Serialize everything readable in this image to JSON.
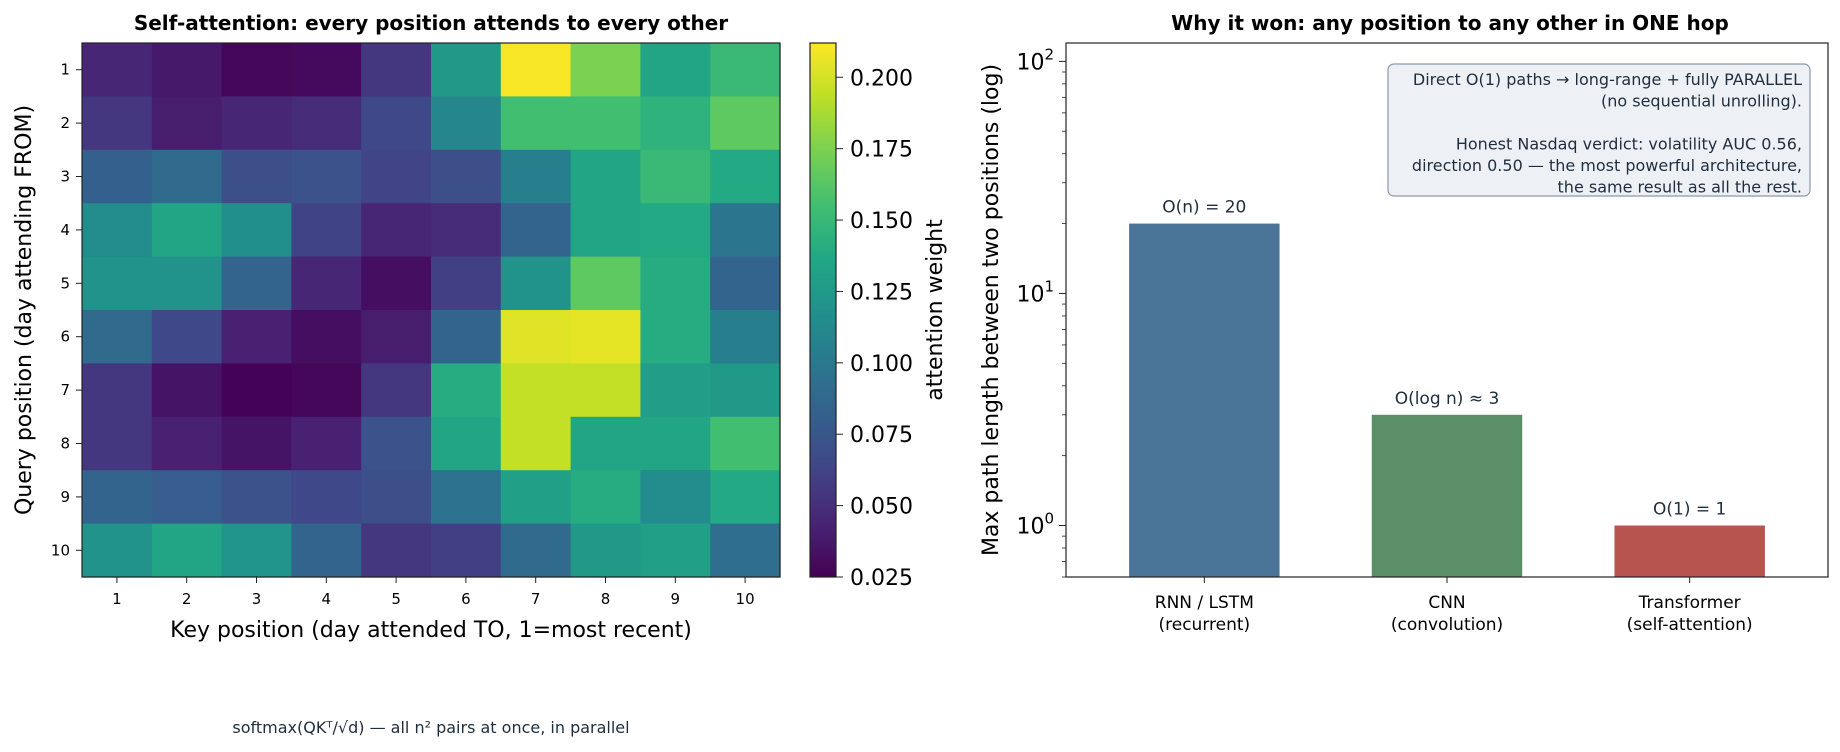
{
  "chart_data": [
    {
      "type": "heatmap",
      "title": "Self-attention: every position attends to every other",
      "xlabel": "Key position (day attended TO, 1=most recent)",
      "ylabel": "Query position (day attending FROM)",
      "x_ticks": [
        "1",
        "2",
        "3",
        "4",
        "5",
        "6",
        "7",
        "8",
        "9",
        "10"
      ],
      "y_ticks": [
        "1",
        "2",
        "3",
        "4",
        "5",
        "6",
        "7",
        "8",
        "9",
        "10"
      ],
      "colorbar_label": "attention weight",
      "colorbar_ticks": [
        "0.025",
        "0.050",
        "0.075",
        "0.100",
        "0.125",
        "0.150",
        "0.175",
        "0.200"
      ],
      "vmin": 0.025,
      "vmax": 0.212,
      "colormap": "viridis",
      "values": [
        [
          0.045,
          0.038,
          0.028,
          0.03,
          0.055,
          0.125,
          0.21,
          0.175,
          0.135,
          0.15
        ],
        [
          0.055,
          0.04,
          0.045,
          0.048,
          0.065,
          0.11,
          0.155,
          0.155,
          0.145,
          0.165
        ],
        [
          0.082,
          0.09,
          0.07,
          0.072,
          0.063,
          0.07,
          0.105,
          0.135,
          0.15,
          0.138
        ],
        [
          0.115,
          0.135,
          0.118,
          0.062,
          0.045,
          0.048,
          0.085,
          0.135,
          0.138,
          0.098
        ],
        [
          0.12,
          0.12,
          0.085,
          0.045,
          0.032,
          0.06,
          0.12,
          0.165,
          0.14,
          0.085
        ],
        [
          0.09,
          0.065,
          0.042,
          0.032,
          0.04,
          0.085,
          0.203,
          0.205,
          0.14,
          0.105
        ],
        [
          0.055,
          0.035,
          0.026,
          0.028,
          0.055,
          0.14,
          0.195,
          0.195,
          0.128,
          0.125
        ],
        [
          0.055,
          0.042,
          0.035,
          0.042,
          0.072,
          0.135,
          0.195,
          0.135,
          0.135,
          0.155
        ],
        [
          0.085,
          0.08,
          0.072,
          0.065,
          0.07,
          0.095,
          0.13,
          0.14,
          0.115,
          0.138
        ],
        [
          0.12,
          0.135,
          0.122,
          0.085,
          0.055,
          0.06,
          0.09,
          0.125,
          0.13,
          0.092
        ]
      ],
      "annotation": "softmax(QKᵀ/√d) — all n² pairs at once, in parallel"
    },
    {
      "type": "bar",
      "title": "Why it won: any position to any other in ONE hop",
      "ylabel": "Max path length between two positions (log)",
      "yscale": "log",
      "ylim": [
        0.6,
        120
      ],
      "y_ticks": [
        1,
        10,
        100
      ],
      "categories": [
        [
          "RNN / LSTM",
          "(recurrent)"
        ],
        [
          "CNN",
          "(convolution)"
        ],
        [
          "Transformer",
          "(self-attention)"
        ]
      ],
      "values": [
        20,
        3,
        1
      ],
      "bar_labels": [
        "O(n) = 20",
        "O(log n) ≈ 3",
        "O(1) = 1"
      ],
      "colors": [
        "#4a7599",
        "#5b8f68",
        "#b85450"
      ],
      "annotation_lines": [
        "Direct O(1) paths → long-range + fully PARALLEL",
        "(no sequential unrolling).",
        "",
        "Honest Nasdaq verdict: volatility AUC 0.56,",
        "direction 0.50 — the most powerful architecture,",
        "the same result as all the rest."
      ]
    }
  ]
}
